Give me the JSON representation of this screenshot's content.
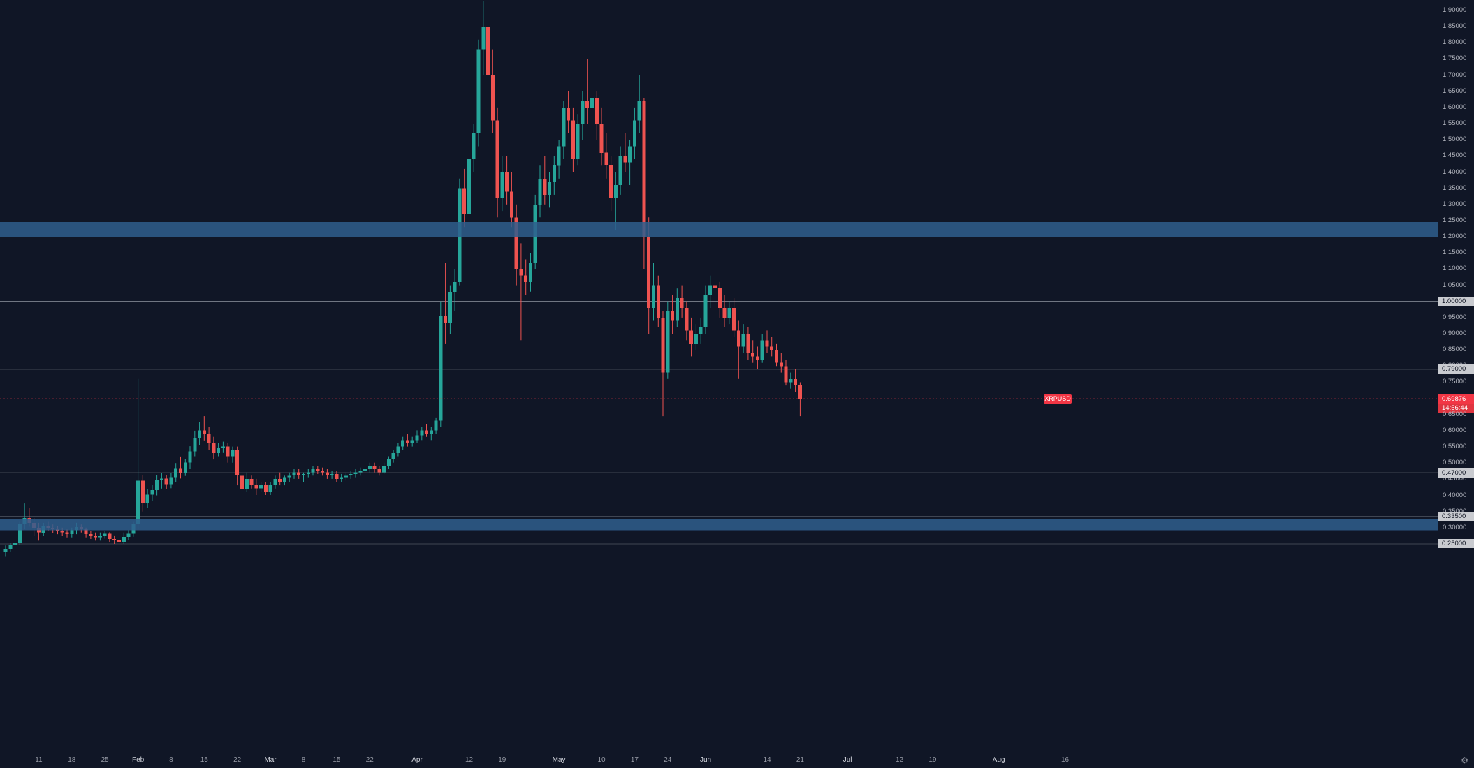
{
  "chart_data": {
    "type": "candlestick",
    "symbol": "XRPUSD",
    "last_price": "0.69876",
    "countdown": "14:56:44",
    "y_axis": {
      "visible_label_min": 0.25,
      "visible_label_max": 1.9,
      "label_step": 0.05,
      "grid": false,
      "legend_position": "none"
    },
    "levels": [
      {
        "price": 1.0,
        "label": "1.00000"
      },
      {
        "price": 0.79,
        "label": "0.79000"
      },
      {
        "price": 0.47,
        "label": "0.47000"
      },
      {
        "price": 0.335,
        "label": "0.33500"
      },
      {
        "price": 0.25,
        "label": "0.25000"
      }
    ],
    "zones": [
      {
        "top": 1.246,
        "bottom": 1.2
      },
      {
        "top": 0.325,
        "bottom": 0.292
      }
    ],
    "colors": {
      "up": "#26a69a",
      "down": "#ef5350",
      "zone": "#2f5e8d",
      "level_line": "#9aa0aa",
      "price_badge": "#f23645",
      "level_badge_bg": "#c9cbd0",
      "background": "#101626",
      "axis_text": "#b2b5be"
    },
    "time_axis": {
      "labels": [
        {
          "text": "11",
          "day": 7
        },
        {
          "text": "18",
          "day": 14
        },
        {
          "text": "25",
          "day": 21
        },
        {
          "text": "Feb",
          "day": 28,
          "month": true
        },
        {
          "text": "8",
          "day": 35
        },
        {
          "text": "15",
          "day": 42
        },
        {
          "text": "22",
          "day": 49
        },
        {
          "text": "Mar",
          "day": 56,
          "month": true
        },
        {
          "text": "8",
          "day": 63
        },
        {
          "text": "15",
          "day": 70
        },
        {
          "text": "22",
          "day": 77
        },
        {
          "text": "Apr",
          "day": 87,
          "month": true
        },
        {
          "text": "12",
          "day": 98
        },
        {
          "text": "19",
          "day": 105
        },
        {
          "text": "May",
          "day": 117,
          "month": true
        },
        {
          "text": "10",
          "day": 126
        },
        {
          "text": "17",
          "day": 133
        },
        {
          "text": "24",
          "day": 140
        },
        {
          "text": "Jun",
          "day": 148,
          "month": true
        },
        {
          "text": "14",
          "day": 161
        },
        {
          "text": "21",
          "day": 168
        },
        {
          "text": "Jul",
          "day": 178,
          "month": true
        },
        {
          "text": "12",
          "day": 189
        },
        {
          "text": "19",
          "day": 196
        },
        {
          "text": "Aug",
          "day": 210,
          "month": true
        },
        {
          "text": "16",
          "day": 224
        }
      ]
    },
    "candles": [
      [
        0.225,
        0.245,
        0.21,
        0.233
      ],
      [
        0.233,
        0.252,
        0.225,
        0.246
      ],
      [
        0.246,
        0.262,
        0.236,
        0.252
      ],
      [
        0.252,
        0.32,
        0.246,
        0.31
      ],
      [
        0.31,
        0.375,
        0.295,
        0.33
      ],
      [
        0.33,
        0.36,
        0.303,
        0.315
      ],
      [
        0.315,
        0.33,
        0.275,
        0.3
      ],
      [
        0.3,
        0.315,
        0.26,
        0.285
      ],
      [
        0.285,
        0.315,
        0.275,
        0.305
      ],
      [
        0.305,
        0.32,
        0.29,
        0.3
      ],
      [
        0.3,
        0.31,
        0.284,
        0.295
      ],
      [
        0.295,
        0.305,
        0.28,
        0.29
      ],
      [
        0.29,
        0.3,
        0.275,
        0.285
      ],
      [
        0.285,
        0.295,
        0.27,
        0.28
      ],
      [
        0.28,
        0.3,
        0.27,
        0.292
      ],
      [
        0.292,
        0.315,
        0.28,
        0.302
      ],
      [
        0.302,
        0.31,
        0.285,
        0.295
      ],
      [
        0.295,
        0.3,
        0.27,
        0.28
      ],
      [
        0.28,
        0.29,
        0.265,
        0.275
      ],
      [
        0.275,
        0.285,
        0.26,
        0.27
      ],
      [
        0.27,
        0.285,
        0.26,
        0.276
      ],
      [
        0.276,
        0.29,
        0.266,
        0.281
      ],
      [
        0.281,
        0.286,
        0.255,
        0.265
      ],
      [
        0.265,
        0.276,
        0.25,
        0.261
      ],
      [
        0.261,
        0.27,
        0.246,
        0.256
      ],
      [
        0.256,
        0.285,
        0.25,
        0.272
      ],
      [
        0.272,
        0.292,
        0.262,
        0.281
      ],
      [
        0.281,
        0.32,
        0.272,
        0.312
      ],
      [
        0.312,
        0.76,
        0.295,
        0.445
      ],
      [
        0.445,
        0.462,
        0.35,
        0.376
      ],
      [
        0.376,
        0.42,
        0.36,
        0.402
      ],
      [
        0.402,
        0.432,
        0.382,
        0.416
      ],
      [
        0.416,
        0.462,
        0.4,
        0.447
      ],
      [
        0.447,
        0.47,
        0.421,
        0.452
      ],
      [
        0.452,
        0.462,
        0.42,
        0.435
      ],
      [
        0.435,
        0.47,
        0.422,
        0.456
      ],
      [
        0.456,
        0.5,
        0.44,
        0.482
      ],
      [
        0.482,
        0.52,
        0.452,
        0.47
      ],
      [
        0.47,
        0.512,
        0.46,
        0.501
      ],
      [
        0.501,
        0.552,
        0.481,
        0.536
      ],
      [
        0.536,
        0.6,
        0.521,
        0.576
      ],
      [
        0.576,
        0.626,
        0.556,
        0.601
      ],
      [
        0.601,
        0.645,
        0.57,
        0.59
      ],
      [
        0.59,
        0.611,
        0.541,
        0.561
      ],
      [
        0.561,
        0.581,
        0.511,
        0.531
      ],
      [
        0.531,
        0.561,
        0.521,
        0.546
      ],
      [
        0.546,
        0.566,
        0.531,
        0.551
      ],
      [
        0.551,
        0.561,
        0.501,
        0.521
      ],
      [
        0.521,
        0.551,
        0.501,
        0.541
      ],
      [
        0.541,
        0.551,
        0.431,
        0.461
      ],
      [
        0.461,
        0.481,
        0.36,
        0.421
      ],
      [
        0.421,
        0.471,
        0.411,
        0.451
      ],
      [
        0.451,
        0.461,
        0.421,
        0.431
      ],
      [
        0.431,
        0.451,
        0.401,
        0.421
      ],
      [
        0.421,
        0.441,
        0.411,
        0.431
      ],
      [
        0.431,
        0.441,
        0.401,
        0.411
      ],
      [
        0.411,
        0.441,
        0.401,
        0.431
      ],
      [
        0.431,
        0.461,
        0.421,
        0.451
      ],
      [
        0.451,
        0.471,
        0.431,
        0.441
      ],
      [
        0.441,
        0.461,
        0.431,
        0.456
      ],
      [
        0.456,
        0.471,
        0.441,
        0.461
      ],
      [
        0.461,
        0.481,
        0.451,
        0.471
      ],
      [
        0.471,
        0.481,
        0.451,
        0.461
      ],
      [
        0.461,
        0.471,
        0.441,
        0.466
      ],
      [
        0.466,
        0.481,
        0.456,
        0.471
      ],
      [
        0.471,
        0.491,
        0.461,
        0.481
      ],
      [
        0.481,
        0.491,
        0.466,
        0.476
      ],
      [
        0.476,
        0.486,
        0.461,
        0.471
      ],
      [
        0.471,
        0.481,
        0.451,
        0.461
      ],
      [
        0.461,
        0.476,
        0.451,
        0.466
      ],
      [
        0.466,
        0.476,
        0.441,
        0.451
      ],
      [
        0.451,
        0.466,
        0.441,
        0.456
      ],
      [
        0.456,
        0.471,
        0.446,
        0.461
      ],
      [
        0.461,
        0.476,
        0.451,
        0.466
      ],
      [
        0.466,
        0.481,
        0.456,
        0.471
      ],
      [
        0.471,
        0.486,
        0.461,
        0.476
      ],
      [
        0.476,
        0.491,
        0.466,
        0.481
      ],
      [
        0.481,
        0.501,
        0.471,
        0.491
      ],
      [
        0.491,
        0.501,
        0.471,
        0.481
      ],
      [
        0.481,
        0.491,
        0.461,
        0.471
      ],
      [
        0.471,
        0.501,
        0.466,
        0.491
      ],
      [
        0.491,
        0.521,
        0.481,
        0.511
      ],
      [
        0.511,
        0.541,
        0.501,
        0.531
      ],
      [
        0.531,
        0.561,
        0.521,
        0.551
      ],
      [
        0.551,
        0.581,
        0.541,
        0.571
      ],
      [
        0.571,
        0.591,
        0.551,
        0.561
      ],
      [
        0.561,
        0.581,
        0.551,
        0.571
      ],
      [
        0.571,
        0.601,
        0.561,
        0.586
      ],
      [
        0.586,
        0.611,
        0.571,
        0.601
      ],
      [
        0.601,
        0.621,
        0.581,
        0.591
      ],
      [
        0.591,
        0.611,
        0.571,
        0.601
      ],
      [
        0.601,
        0.641,
        0.591,
        0.631
      ],
      [
        0.631,
        1.0,
        0.611,
        0.955
      ],
      [
        0.955,
        1.12,
        0.87,
        0.935
      ],
      [
        0.935,
        1.05,
        0.9,
        1.03
      ],
      [
        1.03,
        1.1,
        0.97,
        1.06
      ],
      [
        1.06,
        1.38,
        1.05,
        1.35
      ],
      [
        1.35,
        1.41,
        1.23,
        1.27
      ],
      [
        1.27,
        1.47,
        1.25,
        1.44
      ],
      [
        1.44,
        1.55,
        1.4,
        1.52
      ],
      [
        1.52,
        1.81,
        1.48,
        1.78
      ],
      [
        1.78,
        1.93,
        1.7,
        1.85
      ],
      [
        1.85,
        1.87,
        1.65,
        1.7
      ],
      [
        1.7,
        1.78,
        1.52,
        1.56
      ],
      [
        1.56,
        1.6,
        1.26,
        1.32
      ],
      [
        1.32,
        1.45,
        1.28,
        1.4
      ],
      [
        1.4,
        1.45,
        1.3,
        1.34
      ],
      [
        1.34,
        1.4,
        1.23,
        1.26
      ],
      [
        1.26,
        1.3,
        1.05,
        1.1
      ],
      [
        1.1,
        1.18,
        0.88,
        1.08
      ],
      [
        1.08,
        1.13,
        1.02,
        1.06
      ],
      [
        1.06,
        1.15,
        1.03,
        1.12
      ],
      [
        1.12,
        1.33,
        1.1,
        1.3
      ],
      [
        1.3,
        1.42,
        1.26,
        1.38
      ],
      [
        1.38,
        1.45,
        1.3,
        1.33
      ],
      [
        1.33,
        1.4,
        1.29,
        1.37
      ],
      [
        1.37,
        1.45,
        1.33,
        1.42
      ],
      [
        1.42,
        1.5,
        1.38,
        1.48
      ],
      [
        1.48,
        1.62,
        1.44,
        1.6
      ],
      [
        1.6,
        1.65,
        1.52,
        1.56
      ],
      [
        1.56,
        1.6,
        1.4,
        1.44
      ],
      [
        1.44,
        1.58,
        1.42,
        1.55
      ],
      [
        1.55,
        1.65,
        1.5,
        1.62
      ],
      [
        1.62,
        1.75,
        1.55,
        1.6
      ],
      [
        1.6,
        1.66,
        1.54,
        1.63
      ],
      [
        1.63,
        1.65,
        1.5,
        1.55
      ],
      [
        1.55,
        1.6,
        1.42,
        1.46
      ],
      [
        1.46,
        1.52,
        1.38,
        1.42
      ],
      [
        1.42,
        1.45,
        1.28,
        1.32
      ],
      [
        1.32,
        1.4,
        1.22,
        1.36
      ],
      [
        1.36,
        1.48,
        1.33,
        1.45
      ],
      [
        1.45,
        1.52,
        1.4,
        1.43
      ],
      [
        1.43,
        1.5,
        1.36,
        1.48
      ],
      [
        1.48,
        1.6,
        1.44,
        1.56
      ],
      [
        1.56,
        1.7,
        1.52,
        1.62
      ],
      [
        1.62,
        1.63,
        1.1,
        1.2
      ],
      [
        1.2,
        1.26,
        0.9,
        0.98
      ],
      [
        0.98,
        1.12,
        0.94,
        1.05
      ],
      [
        1.05,
        1.08,
        0.92,
        0.95
      ],
      [
        0.95,
        0.97,
        0.645,
        0.78
      ],
      [
        0.78,
        1.0,
        0.76,
        0.97
      ],
      [
        0.97,
        1.02,
        0.9,
        0.94
      ],
      [
        0.94,
        1.04,
        0.92,
        1.01
      ],
      [
        1.01,
        1.05,
        0.95,
        0.98
      ],
      [
        0.98,
        1.0,
        0.88,
        0.91
      ],
      [
        0.91,
        0.95,
        0.83,
        0.87
      ],
      [
        0.87,
        0.93,
        0.85,
        0.9
      ],
      [
        0.9,
        0.95,
        0.87,
        0.92
      ],
      [
        0.92,
        1.05,
        0.9,
        1.02
      ],
      [
        1.02,
        1.08,
        0.98,
        1.05
      ],
      [
        1.05,
        1.12,
        1.0,
        1.04
      ],
      [
        1.04,
        1.06,
        0.95,
        0.98
      ],
      [
        0.98,
        1.02,
        0.92,
        0.95
      ],
      [
        0.95,
        1.0,
        0.93,
        0.98
      ],
      [
        0.98,
        1.01,
        0.89,
        0.91
      ],
      [
        0.91,
        0.94,
        0.76,
        0.86
      ],
      [
        0.86,
        0.93,
        0.84,
        0.9
      ],
      [
        0.9,
        0.92,
        0.82,
        0.84
      ],
      [
        0.84,
        0.88,
        0.81,
        0.83
      ],
      [
        0.83,
        0.86,
        0.79,
        0.82
      ],
      [
        0.82,
        0.9,
        0.81,
        0.88
      ],
      [
        0.88,
        0.91,
        0.84,
        0.86
      ],
      [
        0.86,
        0.89,
        0.83,
        0.85
      ],
      [
        0.85,
        0.87,
        0.8,
        0.81
      ],
      [
        0.81,
        0.84,
        0.78,
        0.8
      ],
      [
        0.8,
        0.82,
        0.74,
        0.75
      ],
      [
        0.75,
        0.78,
        0.73,
        0.76
      ],
      [
        0.76,
        0.79,
        0.72,
        0.74
      ],
      [
        0.74,
        0.75,
        0.645,
        0.69876
      ]
    ]
  },
  "price_scale": {
    "tick_labels": [
      "1.90000",
      "1.85000",
      "1.80000",
      "1.75000",
      "1.70000",
      "1.65000",
      "1.60000",
      "1.55000",
      "1.50000",
      "1.45000",
      "1.40000",
      "1.35000",
      "1.30000",
      "1.25000",
      "1.20000",
      "1.15000",
      "1.10000",
      "1.05000",
      "0.95000",
      "0.90000",
      "0.85000",
      "0.80000",
      "0.75000",
      "0.65000",
      "0.60000",
      "0.55000",
      "0.50000",
      "0.45000",
      "0.40000",
      "0.35000",
      "0.30000"
    ]
  },
  "icons": {
    "settings_gear": "⚙"
  }
}
